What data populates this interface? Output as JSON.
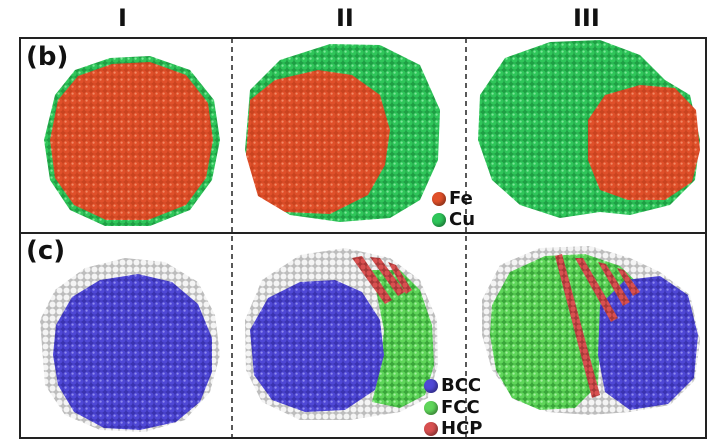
{
  "columns": [
    "I",
    "II",
    "III"
  ],
  "panels": [
    {
      "label": "(b)",
      "legend": [
        {
          "text": "Fe",
          "color": "#e0502a"
        },
        {
          "text": "Cu",
          "color": "#2fc65a"
        }
      ]
    },
    {
      "label": "(c)",
      "legend": [
        {
          "text": "BCC",
          "color": "#4f48d6"
        },
        {
          "text": "FCC",
          "color": "#5fd65a"
        },
        {
          "text": "HCP",
          "color": "#d85050"
        }
      ]
    }
  ],
  "colors": {
    "fe": "#e0502a",
    "cu": "#2fc65a",
    "bcc": "#4f48d6",
    "fcc": "#5fd65a",
    "hcp": "#d85050",
    "other": "#e8e8e8"
  }
}
